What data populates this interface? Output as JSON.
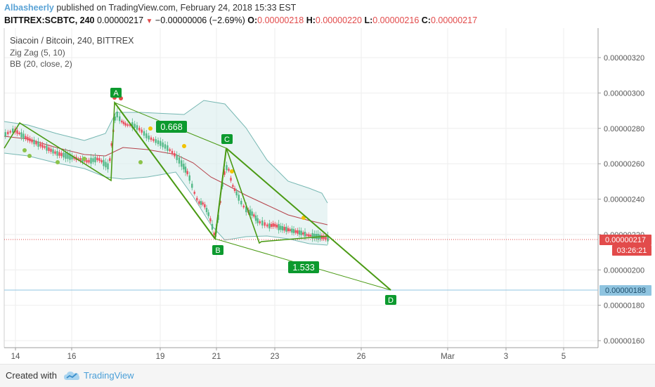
{
  "header": {
    "author": "Albasheerly",
    "published": "published on TradingView.com, February 24, 2018 15:33 EST",
    "symbol_line": "BITTREX:SCBTC, 240",
    "last": "0.00000217",
    "change": "−0.00000006 (−2.69%)",
    "o_label": "O:",
    "o_value": "0.00000218",
    "h_label": "H:",
    "h_value": "0.00000220",
    "l_label": "L:",
    "l_value": "0.00000216",
    "c_label": "C:",
    "c_value": "0.00000217"
  },
  "legend": {
    "title": "Siacoin / Bitcoin, 240, BITTREX",
    "zigzag": "Zig Zag (5, 10)",
    "bb": "BB (20, close, 2)"
  },
  "price_axis": {
    "ticks": [
      "0.00000320",
      "0.00000300",
      "0.00000280",
      "0.00000260",
      "0.00000240",
      "0.00000220",
      "0.00000200",
      "0.00000180",
      "0.00000160"
    ],
    "current_price": "0.00000217",
    "countdown": "03:26:21",
    "target_price": "0.00000188"
  },
  "time_axis": {
    "ticks": [
      "14",
      "16",
      "19",
      "21",
      "23",
      "26",
      "Mar",
      "3",
      "5"
    ]
  },
  "pattern": {
    "points": {
      "A": "A",
      "B": "B",
      "C": "C",
      "D": "D"
    },
    "ratio_ac": "0.668",
    "ratio_bd": "1.533"
  },
  "chart_data": {
    "type": "candlestick",
    "symbol": "BITTREX:SCBTC",
    "interval": "240",
    "y_range": [
      1.55e-06,
      3.35e-06
    ],
    "indicators": [
      "Zig Zag (5, 10)",
      "BB (20, close, 2)"
    ],
    "pattern_points": [
      {
        "label": "A",
        "price": 2.94e-06
      },
      {
        "label": "B",
        "price": 2.15e-06
      },
      {
        "label": "C",
        "price": 2.69e-06
      },
      {
        "label": "D",
        "price": 1.88e-06
      }
    ],
    "ratios": {
      "AC": 0.668,
      "BD": 1.533
    },
    "last_price": 2.17e-06,
    "target_price": 1.88e-06,
    "colors": {
      "up": "#53b987",
      "down": "#eb4d5c",
      "pattern": "#4a9a14",
      "band": "#76b7b2"
    }
  },
  "footer": {
    "created": "Created with",
    "brand": "TradingView"
  }
}
